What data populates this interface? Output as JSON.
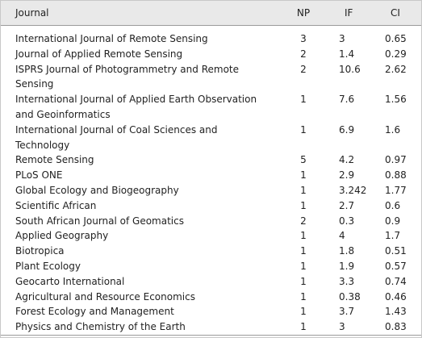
{
  "table": {
    "header": [
      "Journal",
      "NP",
      "IF",
      "CI"
    ],
    "rows": [
      [
        "International Journal of Remote Sensing",
        "3",
        "3",
        "0.65"
      ],
      [
        "Journal of Applied Remote Sensing",
        "2",
        "1.4",
        "0.29"
      ],
      [
        "ISPRS Journal of Photogrammetry and Remote Sensing",
        "2",
        "10.6",
        "2.62"
      ],
      [
        "International Journal of Applied Earth Observation and Geoinformatics",
        "1",
        "7.6",
        "1.56"
      ],
      [
        "International Journal of Coal Sciences and Technology",
        "1",
        "6.9",
        "1.6"
      ],
      [
        "Remote Sensing",
        "5",
        "4.2",
        "0.97"
      ],
      [
        "PLoS ONE",
        "1",
        "2.9",
        "0.88"
      ],
      [
        "Global Ecology and Biogeography",
        "1",
        "3.242",
        "1.77"
      ],
      [
        "Scientific African",
        "1",
        "2.7",
        "0.6"
      ],
      [
        "South African Journal of Geomatics",
        "2",
        "0.3",
        "0.9"
      ],
      [
        "Applied Geography",
        "1",
        "4",
        "1.7"
      ],
      [
        "Biotropica",
        "1",
        "1.8",
        "0.51"
      ],
      [
        "Plant Ecology",
        "1",
        "1.9",
        "0.57"
      ],
      [
        "Geocarto International",
        "1",
        "3.3",
        "0.74"
      ],
      [
        "Agricultural and Resource Economics",
        "1",
        "0.38",
        "0.46"
      ],
      [
        "Forest Ecology and Management",
        "1",
        "3.7",
        "1.43"
      ],
      [
        "Physics and Chemistry of the Earth",
        "1",
        "3",
        "0.83"
      ]
    ]
  }
}
